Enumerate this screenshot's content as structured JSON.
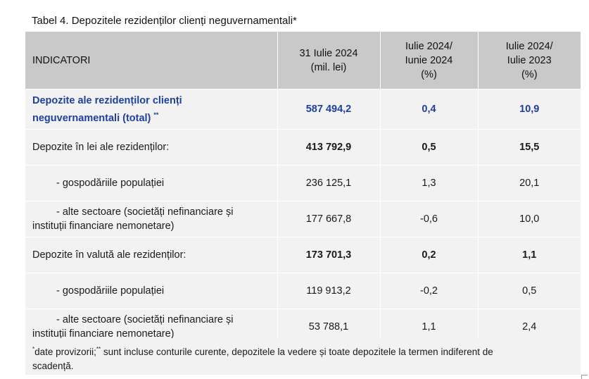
{
  "title": "Tabel 4. Depozitele rezidenților clienți neguvernamentali*",
  "headers": {
    "col1": "INDICATORI",
    "col2_line1": "31 Iulie 2024",
    "col2_line2": "(mil. lei)",
    "col3_line1": "Iulie 2024/",
    "col3_line2": "Iunie 2024",
    "col3_line3": "(%)",
    "col4_line1": "Iulie 2024/",
    "col4_line2": "Iulie 2023",
    "col4_line3": "(%)"
  },
  "total": {
    "label_line1": "Depozite ale rezidenților clienți",
    "label_line2": "neguvernamentali (total)",
    "label_sup": "**",
    "value": "587 494,2",
    "mom": "0,4",
    "yoy": "10,9"
  },
  "rows": [
    {
      "label": "Depozite în lei ale rezidenților:",
      "value": "413 792,9",
      "mom": "0,5",
      "yoy": "15,5"
    },
    {
      "label": "- gospodăriile populației",
      "value": "236 125,1",
      "mom": "1,3",
      "yoy": "20,1"
    },
    {
      "label_line1": "- alte sectoare (societăți nefinanciare și",
      "label_line2": "instituții financiare nemonetare)",
      "value": "177 667,8",
      "mom": "-0,6",
      "yoy": "10,0"
    },
    {
      "label": "Depozite în valută ale rezidenților:",
      "value": "173 701,3",
      "mom": "0,2",
      "yoy": "1,1"
    },
    {
      "label": "- gospodăriile populației",
      "value": "119 913,2",
      "mom": "-0,2",
      "yoy": "0,5"
    },
    {
      "label_line1": "- alte sectoare (societăți nefinanciare și",
      "label_line2": "instituții financiare nemonetare)",
      "value": "53 788,1",
      "mom": "1,1",
      "yoy": "2,4"
    }
  ],
  "footnote": {
    "sup1": "*",
    "text1": "date provizorii;",
    "sup2": "**",
    "text2": " sunt incluse conturile curente, depozitele la vedere și toate depozitele la termen indiferent de",
    "text3": "scadență."
  }
}
